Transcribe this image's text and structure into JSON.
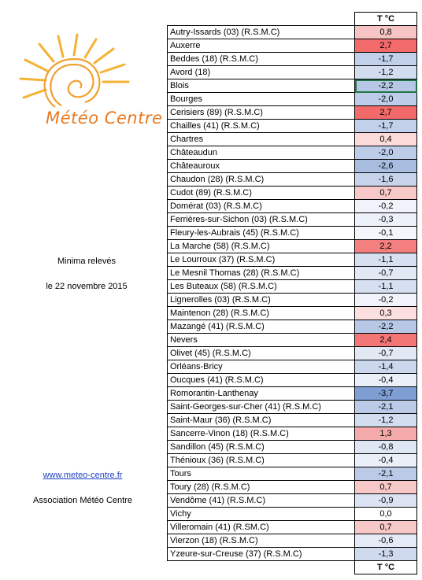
{
  "logo": {
    "text": "Météo Centre"
  },
  "side": {
    "title": "Minima relevés",
    "date": "le 22 novembre 2015",
    "link": "www.meteo-centre.fr",
    "association": "Association Météo Centre"
  },
  "table": {
    "header": "T °C",
    "footer": "T °C",
    "rows": [
      {
        "name": "Autry-Issards (03) (R.S.M.C)",
        "value": "0,8",
        "color": "#f6c4c4"
      },
      {
        "name": "Auxerre",
        "value": "2,7",
        "color": "#f26a6a"
      },
      {
        "name": "Beddes (18) (R.S.M.C)",
        "value": "-1,7",
        "color": "#c2d0ea"
      },
      {
        "name": "Avord (18)",
        "value": "-1,2",
        "color": "#d3ddf0"
      },
      {
        "name": "Blois",
        "value": "-2,2",
        "color": "#b7c8e6"
      },
      {
        "name": "Bourges",
        "value": "-2,0",
        "color": "#bdcce8"
      },
      {
        "name": "Cerisiers (89) (R.S.M.C)",
        "value": "2,7",
        "color": "#f26a6a"
      },
      {
        "name": "Chailles (41) (R.S.M.C)",
        "value": "-1,7",
        "color": "#c2d0ea"
      },
      {
        "name": "Chartres",
        "value": "0,4",
        "color": "#fbdada"
      },
      {
        "name": "Châteaudun",
        "value": "-2,0",
        "color": "#bdcce8"
      },
      {
        "name": "Châteauroux",
        "value": "-2,6",
        "color": "#a9bde1"
      },
      {
        "name": "Chaudon (28) (R.S.M.C)",
        "value": "-1,6",
        "color": "#c6d3eb"
      },
      {
        "name": "Cudot (89) (R.S.M.C)",
        "value": "0,7",
        "color": "#f7c8c8"
      },
      {
        "name": "Domérat (03) (R.S.M.C)",
        "value": "-0,2",
        "color": "#f0f3fa"
      },
      {
        "name": "Ferrières-sur-Sichon (03) (R.S.M.C)",
        "value": "-0,3",
        "color": "#edf1f9"
      },
      {
        "name": "Fleury-les-Aubrais (45) (R.S.M.C)",
        "value": "-0,1",
        "color": "#f4f6fb"
      },
      {
        "name": "La Marche (58) (R.S.M.C)",
        "value": "2,2",
        "color": "#f47f7f"
      },
      {
        "name": "Le Lourroux (37) (R.S.M.C)",
        "value": "-1,1",
        "color": "#d6e0f1"
      },
      {
        "name": "Le Mesnil Thomas (28) (R.S.M.C)",
        "value": "-0,7",
        "color": "#e2e9f5"
      },
      {
        "name": "Les Buteaux (58) (R.S.M.C)",
        "value": "-1,1",
        "color": "#d6e0f1"
      },
      {
        "name": "Lignerolles (03) (R.S.M.C)",
        "value": "-0,2",
        "color": "#f0f3fa"
      },
      {
        "name": "Maintenon (28) (R.S.M.C)",
        "value": "0,3",
        "color": "#fcdfdf"
      },
      {
        "name": "Mazangé (41) (R.S.M.C)",
        "value": "-2,2",
        "color": "#b7c8e6"
      },
      {
        "name": "Nevers",
        "value": "2,4",
        "color": "#f37676"
      },
      {
        "name": "Olivet (45) (R.S.M.C)",
        "value": "-0,7",
        "color": "#e2e9f5"
      },
      {
        "name": "Orléans-Bricy",
        "value": "-1,4",
        "color": "#cbd7ed"
      },
      {
        "name": "Oucques (41) (R.S.M.C)",
        "value": "-0,4",
        "color": "#eaeff8"
      },
      {
        "name": "Romorantin-Lanthenay",
        "value": "-3,7",
        "color": "#7f9ed4"
      },
      {
        "name": "Saint-Georges-sur-Cher (41) (R.S.M.C)",
        "value": "-2,1",
        "color": "#bacae7"
      },
      {
        "name": "Saint-Maur (36) (R.S.M.C)",
        "value": "-1,2",
        "color": "#d3ddf0"
      },
      {
        "name": "Sancerre-Vinon  (18) (R.S.M.C)",
        "value": "1,3",
        "color": "#f4aaaa"
      },
      {
        "name": "Sandillon (45) (R.S.M.C)",
        "value": "-0,8",
        "color": "#dfe6f4"
      },
      {
        "name": "Thénioux (36) (R.S.M.C)",
        "value": "-0,4",
        "color": "#eaeff8"
      },
      {
        "name": "Tours",
        "value": "-2,1",
        "color": "#bacae7"
      },
      {
        "name": "Toury (28) (R.S.M.C)",
        "value": "0,7",
        "color": "#f7c8c8"
      },
      {
        "name": "Vendôme (41) (R.S.M.C)",
        "value": "-0,9",
        "color": "#dce4f3"
      },
      {
        "name": "Vichy",
        "value": "0,0",
        "color": "#ffffff"
      },
      {
        "name": "Villeromain (41) (R.SM.C)",
        "value": "0,7",
        "color": "#f7c8c8"
      },
      {
        "name": "Vierzon (18) (R.S.M.C)",
        "value": "-0,6",
        "color": "#e5ebf6"
      },
      {
        "name": "Yzeure-sur-Creuse (37) (R.S.M.C)",
        "value": "-1,3",
        "color": "#cfdaef"
      }
    ]
  }
}
